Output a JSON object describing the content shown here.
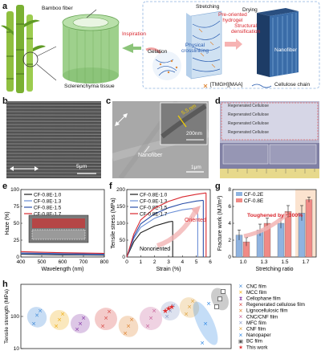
{
  "panel_a": {
    "label": "a",
    "bamboo_fiber": "Bamboo fiber",
    "sclerenchyma": "Sclerenchyma tissue",
    "inspiration": "Inspiration",
    "gelation": "Gelation",
    "physical_crosslinking": "Physical\ncrosslinking",
    "stretching": "Stretching",
    "pre_oriented": "Pre-oriented\nhydrogel",
    "drying": "Drying",
    "structural_densification": "Structural\ndensification",
    "nanofiber": "Nanofiber",
    "legend_ion": "[TMGH][MAA]",
    "legend_chain": "Cellulose chain"
  },
  "panel_b": {
    "label": "b",
    "scale": "5μm"
  },
  "panel_c": {
    "label": "c",
    "nanofiber": "Nanofiber",
    "scale_main": "1μm",
    "scale_inset": "200nm",
    "inset_dim": "5.5 nm"
  },
  "panel_d": {
    "label": "d",
    "rows": [
      "Regenerated Cellulose",
      "Regenerated Cellulose",
      "Regenerated Cellulose",
      "Regenerated Cellulose"
    ]
  },
  "chart_e": {
    "label": "e",
    "type": "line",
    "xlabel": "Wavelength (nm)",
    "ylabel": "Haze (%)",
    "xlim": [
      400,
      800
    ],
    "ylim": [
      0,
      100
    ],
    "xticks": [
      "400",
      "500",
      "600",
      "700",
      "800"
    ],
    "yticks": [
      "0",
      "25",
      "50",
      "75",
      "100"
    ],
    "series": [
      {
        "name": "CF-0.8E-1.0",
        "color": "#1a1a1a",
        "x": [
          400,
          500,
          600,
          700,
          800
        ],
        "y": [
          4,
          3.5,
          3,
          2.8,
          2.5
        ]
      },
      {
        "name": "CF-0.8E-1.3",
        "color": "#6b8fd6",
        "x": [
          400,
          500,
          600,
          700,
          800
        ],
        "y": [
          5,
          4.5,
          4,
          3.6,
          3.3
        ]
      },
      {
        "name": "CF-0.8E-1.5",
        "color": "#2b4fa8",
        "x": [
          400,
          500,
          600,
          700,
          800
        ],
        "y": [
          6,
          5.5,
          5,
          4.6,
          4.2
        ]
      },
      {
        "name": "CF-0.8E-1.7",
        "color": "#d9272e",
        "x": [
          400,
          500,
          600,
          700,
          800
        ],
        "y": [
          8,
          7,
          6.3,
          5.8,
          5.3
        ]
      }
    ]
  },
  "chart_f": {
    "label": "f",
    "type": "line",
    "xlabel": "Strain (%)",
    "ylabel": "Tensile stress (MPa)",
    "xlim": [
      0,
      6
    ],
    "ylim": [
      0,
      200
    ],
    "xticks": [
      "0",
      "1",
      "2",
      "3",
      "4",
      "5",
      "6"
    ],
    "yticks": [
      "0",
      "50",
      "100",
      "150",
      "200"
    ],
    "oriented": "Oriented",
    "nonoriented": "Nonoriented",
    "series": [
      {
        "name": "CF-0.8E-1.0",
        "color": "#1a1a1a",
        "x": [
          0,
          0.5,
          1.0,
          2.0,
          3.0,
          3.3
        ],
        "y": [
          0,
          45,
          72,
          92,
          104,
          106
        ]
      },
      {
        "name": "CF-0.8E-1.3",
        "color": "#6b8fd6",
        "x": [
          0,
          0.5,
          1.0,
          2.0,
          3.0,
          4.0,
          5.1
        ],
        "y": [
          0,
          55,
          88,
          115,
          130,
          140,
          146
        ]
      },
      {
        "name": "CF-0.8E-1.5",
        "color": "#2b4fa8",
        "x": [
          0,
          0.5,
          1.0,
          2.0,
          3.0,
          4.0,
          5.0,
          5.5
        ],
        "y": [
          0,
          60,
          98,
          128,
          146,
          158,
          166,
          168
        ]
      },
      {
        "name": "CF-0.8E-1.7",
        "color": "#d9272e",
        "x": [
          0,
          0.5,
          1.0,
          2.0,
          3.0,
          4.0,
          5.0,
          5.7
        ],
        "y": [
          0,
          68,
          110,
          145,
          165,
          178,
          186,
          190
        ]
      }
    ]
  },
  "chart_g": {
    "label": "g",
    "type": "bar",
    "xlabel": "Stretching ratio",
    "ylabel": "Fracture work (MJ/m³)",
    "categories": [
      "1.0",
      "1.3",
      "1.5",
      "1.7"
    ],
    "ylim": [
      0,
      8
    ],
    "yticks": [
      "0",
      "2",
      "4",
      "6",
      "8"
    ],
    "annotation": "Toughened by ~300%",
    "series": [
      {
        "name": "CF-0.2E",
        "color": "#8fb3e0",
        "values": [
          2.6,
          3.2,
          4.0,
          5.2
        ],
        "errors": [
          0.6,
          0.7,
          0.6,
          0.9
        ]
      },
      {
        "name": "CF-0.8E",
        "color": "#f08a86",
        "values": [
          1.8,
          4.0,
          5.4,
          6.8
        ],
        "errors": [
          0.5,
          0.6,
          0.7,
          0.3
        ]
      }
    ]
  },
  "chart_h": {
    "label": "h",
    "type": "scatter",
    "ylabel": "Tensile strength (MPa)",
    "yscale": "log",
    "ylim": [
      10,
      1000
    ],
    "yticks": [
      "10",
      "100"
    ],
    "series": [
      {
        "name": "CNC film",
        "color": "#4a90d9",
        "marker": "x"
      },
      {
        "name": "MCC film",
        "color": "#f0b323",
        "marker": "x"
      },
      {
        "name": "Cellophane film",
        "color": "#8e44ad",
        "marker": "hourglass"
      },
      {
        "name": "Regenerated cellulose film",
        "color": "#d9534f",
        "marker": "x"
      },
      {
        "name": "Lignocellulosic film",
        "color": "#e08a3c",
        "marker": "x"
      },
      {
        "name": "CNC/CNF film",
        "color": "#c9699e",
        "marker": "x"
      },
      {
        "name": "MFC film",
        "color": "#8e9fc9",
        "marker": "x"
      },
      {
        "name": "CNF film",
        "color": "#e1a94b",
        "marker": "x"
      },
      {
        "name": "Nanopaper",
        "color": "#3a8ee6",
        "marker": "x"
      },
      {
        "name": "BC film",
        "color": "#555555",
        "marker": "square-x"
      },
      {
        "name": "This work",
        "color": "#e03030",
        "marker": "star"
      }
    ]
  }
}
